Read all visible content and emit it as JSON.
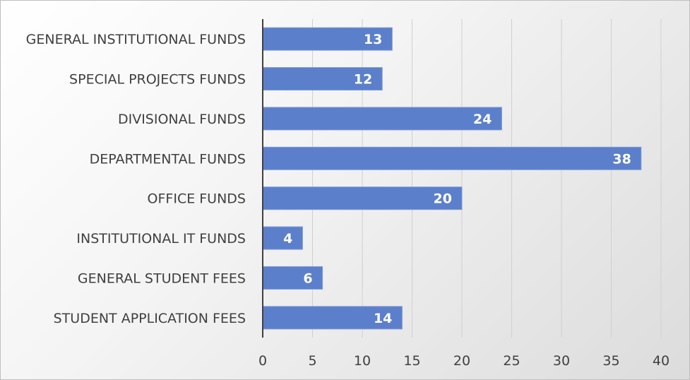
{
  "chart_data": {
    "type": "bar",
    "orientation": "horizontal",
    "categories": [
      "GENERAL INSTITUTIONAL FUNDS",
      "SPECIAL PROJECTS FUNDS",
      "DIVISIONAL FUNDS",
      "DEPARTMENTAL FUNDS",
      "OFFICE FUNDS",
      "INSTITUTIONAL IT FUNDS",
      "GENERAL STUDENT FEES",
      "STUDENT APPLICATION FEES"
    ],
    "values": [
      13,
      12,
      24,
      38,
      20,
      4,
      6,
      14
    ],
    "xlim": [
      0,
      40
    ],
    "xticks": [
      0,
      5,
      10,
      15,
      20,
      25,
      30,
      35,
      40
    ],
    "grid": "vertical",
    "data_labels": true,
    "bar_color": "#5b7fcb",
    "title": "",
    "xlabel": "",
    "ylabel": ""
  }
}
